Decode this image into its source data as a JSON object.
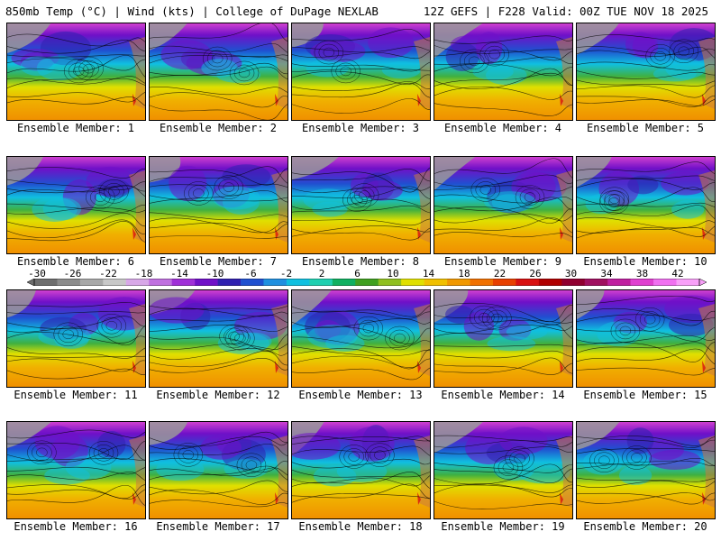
{
  "header": {
    "left_title": "850mb Temp (°C) | Wind (kts) | College of DuPage NEXLAB",
    "right_title": "12Z GEFS | F228 Valid: 00Z TUE NOV 18 2025"
  },
  "panels": [
    {
      "label": "Ensemble Member: 1"
    },
    {
      "label": "Ensemble Member: 2"
    },
    {
      "label": "Ensemble Member: 3"
    },
    {
      "label": "Ensemble Member: 4"
    },
    {
      "label": "Ensemble Member: 5"
    },
    {
      "label": "Ensemble Member: 6"
    },
    {
      "label": "Ensemble Member: 7"
    },
    {
      "label": "Ensemble Member: 8"
    },
    {
      "label": "Ensemble Member: 9"
    },
    {
      "label": "Ensemble Member: 10"
    },
    {
      "label": "Ensemble Member: 11"
    },
    {
      "label": "Ensemble Member: 12"
    },
    {
      "label": "Ensemble Member: 13"
    },
    {
      "label": "Ensemble Member: 14"
    },
    {
      "label": "Ensemble Member: 15"
    },
    {
      "label": "Ensemble Member: 16"
    },
    {
      "label": "Ensemble Member: 17"
    },
    {
      "label": "Ensemble Member: 18"
    },
    {
      "label": "Ensemble Member: 19"
    },
    {
      "label": "Ensemble Member: 20"
    }
  ],
  "colorbar": {
    "ticks": [
      "-30",
      "-26",
      "-22",
      "-18",
      "-14",
      "-10",
      "-6",
      "-2",
      "2",
      "6",
      "10",
      "14",
      "18",
      "22",
      "26",
      "30",
      "34",
      "38",
      "42"
    ],
    "colors": [
      "#6e6e6e",
      "#8c8c8c",
      "#a8a8a8",
      "#c8c8c8",
      "#d8a8e8",
      "#c070e0",
      "#a030d8",
      "#7010c8",
      "#3020b0",
      "#2050d0",
      "#2090e0",
      "#10c0e0",
      "#20d0b0",
      "#10b060",
      "#40a020",
      "#90c020",
      "#e0e000",
      "#f0c000",
      "#f09800",
      "#f07000",
      "#e84000",
      "#d81010",
      "#b00000",
      "#900030",
      "#a01060",
      "#c020a0",
      "#e040d0",
      "#f070f0",
      "#f8a0f8"
    ]
  }
}
